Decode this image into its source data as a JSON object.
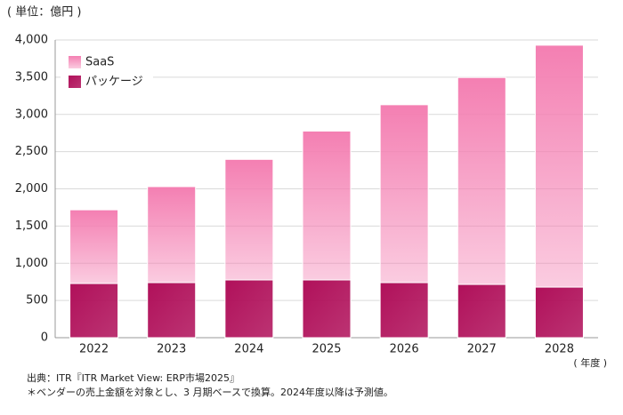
{
  "chart_data": {
    "type": "stacked_bar",
    "unit_label": "( 単位：億円 )",
    "x_label": "( 年度 )",
    "source": "出典：ITR『ITR Market View: ERP市場2025』",
    "note": "＊ベンダーの売上金額を対象とし、3 月期ベースで換算。2024年度以降は予測値。",
    "categories": [
      "2022",
      "2023",
      "2024",
      "2025",
      "2026",
      "2027",
      "2028"
    ],
    "series": [
      {
        "name": "パッケージ",
        "color": "#b0105a",
        "values": [
          728,
          740,
          776,
          776,
          740,
          716,
          680
        ]
      },
      {
        "name": "SaaS",
        "color": "#f47fb2",
        "values": [
          990,
          1290,
          1620,
          2000,
          2390,
          2780,
          3250
        ]
      }
    ],
    "ylim": [
      0,
      4000
    ],
    "yticks": [
      0,
      500,
      {
        "value": 1000,
        "label": "1,000"
      },
      {
        "value": 1500,
        "label": "1,500"
      },
      {
        "value": 2000,
        "label": "2,000"
      },
      {
        "value": 2500,
        "label": "2,500"
      },
      {
        "value": 3000,
        "label": "3,000"
      },
      {
        "value": 3500,
        "label": "3,500"
      },
      {
        "value": 4000,
        "label": "4,000"
      }
    ],
    "grid": true,
    "legend": "top-left"
  }
}
